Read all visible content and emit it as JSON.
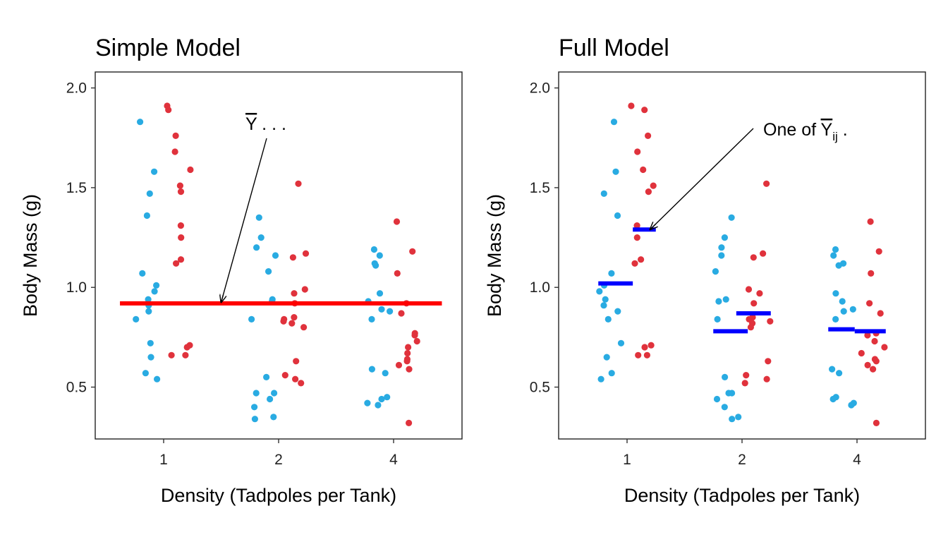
{
  "colors": {
    "blue": "#29ABE2",
    "red": "#E0323C",
    "overall_mean": "#FF0000",
    "group_mean": "#0000FF"
  },
  "chart_data": [
    {
      "type": "scatter",
      "title": "Simple Model",
      "xlabel": "Density (Tadpoles per Tank)",
      "ylabel": "Body Mass (g)",
      "x_categories": [
        "1",
        "2",
        "4"
      ],
      "ylim": [
        0.24,
        2.08
      ],
      "y_ticks": [
        "0.5",
        "1.0",
        "1.5",
        "2.0"
      ],
      "y_tick_values": [
        0.5,
        1.0,
        1.5,
        2.0
      ],
      "grid": false,
      "series": [
        {
          "color_role": "blue",
          "points": [
            [
              1,
              1.83
            ],
            [
              1,
              1.58
            ],
            [
              1,
              1.47
            ],
            [
              1,
              1.36
            ],
            [
              1,
              1.07
            ],
            [
              1,
              1.01
            ],
            [
              1,
              0.98
            ],
            [
              1,
              0.94
            ],
            [
              1,
              0.91
            ],
            [
              1,
              0.88
            ],
            [
              1,
              0.84
            ],
            [
              1,
              0.72
            ],
            [
              1,
              0.65
            ],
            [
              1,
              0.57
            ],
            [
              1,
              0.54
            ],
            [
              2,
              1.35
            ],
            [
              2,
              1.25
            ],
            [
              2,
              1.2
            ],
            [
              2,
              1.16
            ],
            [
              2,
              1.08
            ],
            [
              2,
              0.94
            ],
            [
              2,
              0.93
            ],
            [
              2,
              0.84
            ],
            [
              2,
              0.55
            ],
            [
              2,
              0.47
            ],
            [
              2,
              0.47
            ],
            [
              2,
              0.44
            ],
            [
              2,
              0.4
            ],
            [
              2,
              0.35
            ],
            [
              2,
              0.34
            ],
            [
              4,
              1.19
            ],
            [
              4,
              1.16
            ],
            [
              4,
              1.12
            ],
            [
              4,
              1.11
            ],
            [
              4,
              0.97
            ],
            [
              4,
              0.93
            ],
            [
              4,
              0.89
            ],
            [
              4,
              0.88
            ],
            [
              4,
              0.84
            ],
            [
              4,
              0.59
            ],
            [
              4,
              0.57
            ],
            [
              4,
              0.45
            ],
            [
              4,
              0.44
            ],
            [
              4,
              0.42
            ],
            [
              4,
              0.41
            ]
          ]
        },
        {
          "color_role": "red",
          "points": [
            [
              1,
              1.91
            ],
            [
              1,
              1.89
            ],
            [
              1,
              1.76
            ],
            [
              1,
              1.68
            ],
            [
              1,
              1.59
            ],
            [
              1,
              1.51
            ],
            [
              1,
              1.48
            ],
            [
              1,
              1.31
            ],
            [
              1,
              1.25
            ],
            [
              1,
              1.14
            ],
            [
              1,
              1.12
            ],
            [
              1,
              0.71
            ],
            [
              1,
              0.7
            ],
            [
              1,
              0.66
            ],
            [
              1,
              0.66
            ],
            [
              2,
              1.52
            ],
            [
              2,
              1.17
            ],
            [
              2,
              1.15
            ],
            [
              2,
              0.99
            ],
            [
              2,
              0.97
            ],
            [
              2,
              0.92
            ],
            [
              2,
              0.85
            ],
            [
              2,
              0.84
            ],
            [
              2,
              0.83
            ],
            [
              2,
              0.82
            ],
            [
              2,
              0.8
            ],
            [
              2,
              0.63
            ],
            [
              2,
              0.56
            ],
            [
              2,
              0.54
            ],
            [
              2,
              0.52
            ],
            [
              4,
              1.33
            ],
            [
              4,
              1.18
            ],
            [
              4,
              1.07
            ],
            [
              4,
              0.92
            ],
            [
              4,
              0.87
            ],
            [
              4,
              0.77
            ],
            [
              4,
              0.76
            ],
            [
              4,
              0.73
            ],
            [
              4,
              0.7
            ],
            [
              4,
              0.67
            ],
            [
              4,
              0.64
            ],
            [
              4,
              0.63
            ],
            [
              4,
              0.61
            ],
            [
              4,
              0.59
            ],
            [
              4,
              0.32
            ]
          ]
        }
      ],
      "mean_lines": [
        {
          "color_role": "overall_mean",
          "x_from": 0.62,
          "x_to": 3.42,
          "y": 0.92
        }
      ],
      "annotation": {
        "text": "Y",
        "suffix": " . . .",
        "target": [
          1.5,
          0.925
        ]
      }
    },
    {
      "type": "scatter",
      "title": "Full Model",
      "xlabel": "Density (Tadpoles per Tank)",
      "ylabel": "Body Mass (g)",
      "x_categories": [
        "1",
        "2",
        "4"
      ],
      "ylim": [
        0.24,
        2.08
      ],
      "y_ticks": [
        "0.5",
        "1.0",
        "1.5",
        "2.0"
      ],
      "y_tick_values": [
        0.5,
        1.0,
        1.5,
        2.0
      ],
      "grid": false,
      "series": [
        {
          "color_role": "blue",
          "points": [
            [
              1,
              1.83
            ],
            [
              1,
              1.58
            ],
            [
              1,
              1.47
            ],
            [
              1,
              1.36
            ],
            [
              1,
              1.07
            ],
            [
              1,
              1.01
            ],
            [
              1,
              0.98
            ],
            [
              1,
              0.94
            ],
            [
              1,
              0.91
            ],
            [
              1,
              0.88
            ],
            [
              1,
              0.84
            ],
            [
              1,
              0.72
            ],
            [
              1,
              0.65
            ],
            [
              1,
              0.57
            ],
            [
              1,
              0.54
            ],
            [
              2,
              1.35
            ],
            [
              2,
              1.25
            ],
            [
              2,
              1.2
            ],
            [
              2,
              1.16
            ],
            [
              2,
              1.08
            ],
            [
              2,
              0.94
            ],
            [
              2,
              0.93
            ],
            [
              2,
              0.84
            ],
            [
              2,
              0.55
            ],
            [
              2,
              0.47
            ],
            [
              2,
              0.47
            ],
            [
              2,
              0.44
            ],
            [
              2,
              0.4
            ],
            [
              2,
              0.35
            ],
            [
              2,
              0.34
            ],
            [
              4,
              1.19
            ],
            [
              4,
              1.16
            ],
            [
              4,
              1.12
            ],
            [
              4,
              1.11
            ],
            [
              4,
              0.97
            ],
            [
              4,
              0.93
            ],
            [
              4,
              0.89
            ],
            [
              4,
              0.88
            ],
            [
              4,
              0.84
            ],
            [
              4,
              0.59
            ],
            [
              4,
              0.57
            ],
            [
              4,
              0.45
            ],
            [
              4,
              0.44
            ],
            [
              4,
              0.42
            ],
            [
              4,
              0.41
            ]
          ]
        },
        {
          "color_role": "red",
          "points": [
            [
              1,
              1.91
            ],
            [
              1,
              1.89
            ],
            [
              1,
              1.76
            ],
            [
              1,
              1.68
            ],
            [
              1,
              1.59
            ],
            [
              1,
              1.51
            ],
            [
              1,
              1.48
            ],
            [
              1,
              1.31
            ],
            [
              1,
              1.25
            ],
            [
              1,
              1.14
            ],
            [
              1,
              1.12
            ],
            [
              1,
              0.71
            ],
            [
              1,
              0.7
            ],
            [
              1,
              0.66
            ],
            [
              1,
              0.66
            ],
            [
              2,
              1.52
            ],
            [
              2,
              1.17
            ],
            [
              2,
              1.15
            ],
            [
              2,
              0.99
            ],
            [
              2,
              0.97
            ],
            [
              2,
              0.92
            ],
            [
              2,
              0.85
            ],
            [
              2,
              0.84
            ],
            [
              2,
              0.83
            ],
            [
              2,
              0.82
            ],
            [
              2,
              0.8
            ],
            [
              2,
              0.63
            ],
            [
              2,
              0.56
            ],
            [
              2,
              0.54
            ],
            [
              2,
              0.52
            ],
            [
              4,
              1.33
            ],
            [
              4,
              1.18
            ],
            [
              4,
              1.07
            ],
            [
              4,
              0.92
            ],
            [
              4,
              0.87
            ],
            [
              4,
              0.77
            ],
            [
              4,
              0.76
            ],
            [
              4,
              0.73
            ],
            [
              4,
              0.7
            ],
            [
              4,
              0.67
            ],
            [
              4,
              0.64
            ],
            [
              4,
              0.63
            ],
            [
              4,
              0.61
            ],
            [
              4,
              0.59
            ],
            [
              4,
              0.32
            ]
          ]
        }
      ],
      "mean_lines": [
        {
          "color_role": "group_mean",
          "x_from": 0.75,
          "x_to": 1.05,
          "y": 1.02
        },
        {
          "color_role": "group_mean",
          "x_from": 1.05,
          "x_to": 1.25,
          "y": 1.29
        },
        {
          "color_role": "group_mean",
          "x_from": 1.75,
          "x_to": 2.05,
          "y": 0.78
        },
        {
          "color_role": "group_mean",
          "x_from": 1.95,
          "x_to": 2.25,
          "y": 0.87
        },
        {
          "color_role": "group_mean",
          "x_from": 2.75,
          "x_to": 2.98,
          "y": 0.79
        },
        {
          "color_role": "group_mean",
          "x_from": 2.98,
          "x_to": 3.25,
          "y": 0.78
        }
      ],
      "annotation": {
        "text": "One of Y",
        "subscript": "ij",
        "suffix": " .",
        "target": [
          1.2,
          1.29
        ]
      }
    }
  ]
}
